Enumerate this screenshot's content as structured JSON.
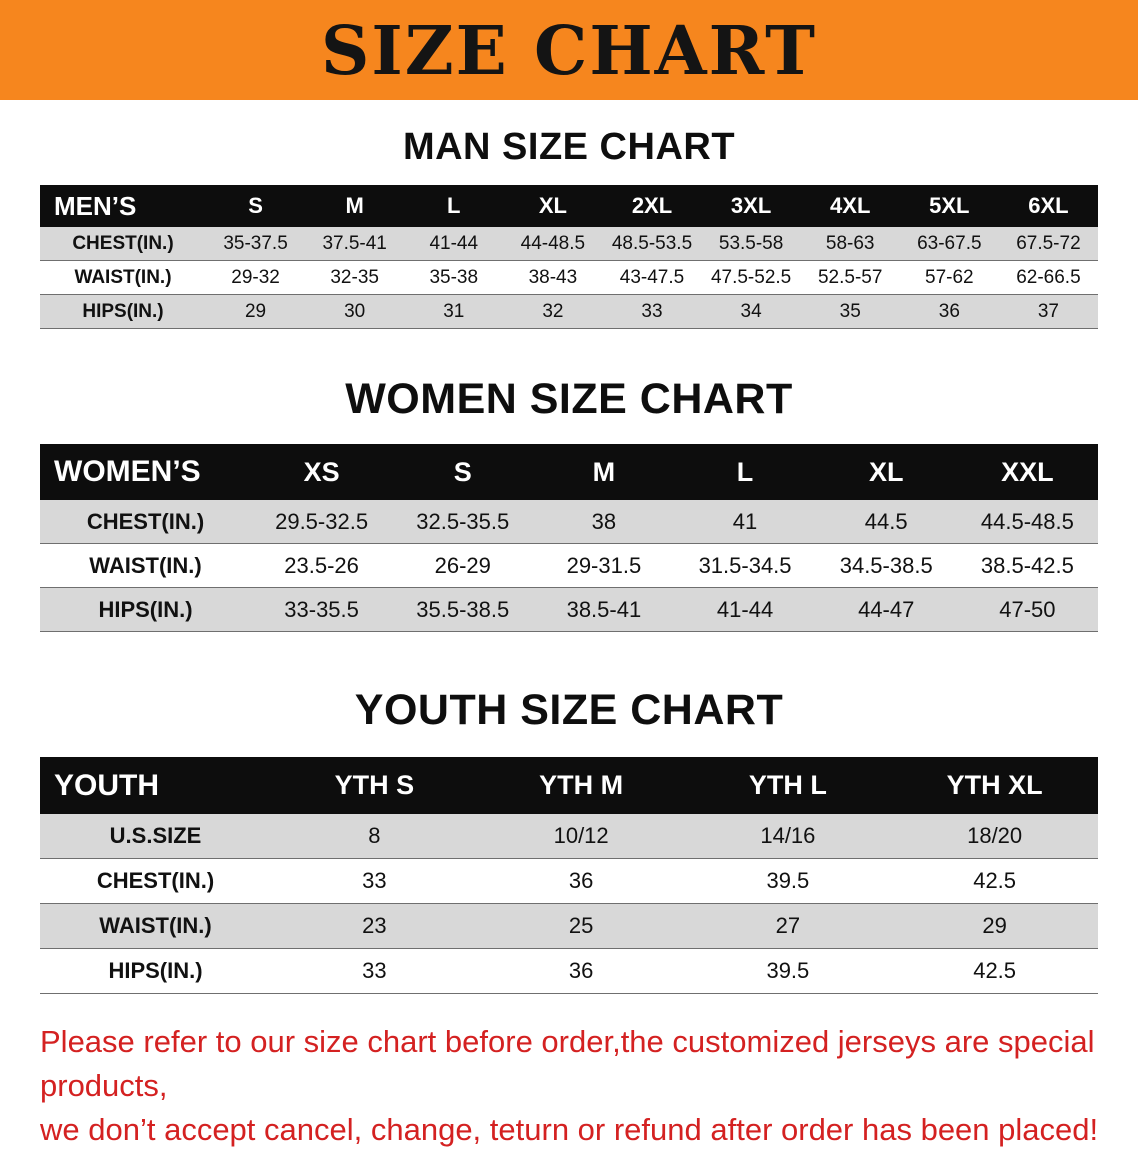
{
  "banner": {
    "title": "SIZE CHART",
    "bg_color": "#f6861e"
  },
  "colors": {
    "header_bar": "#0d0d0d",
    "row_gray": "#d8d8d8",
    "footer_red": "#d42121"
  },
  "sections": [
    {
      "heading": "MAN SIZE CHART"
    },
    {
      "heading": "WOMEN SIZE CHART"
    },
    {
      "heading": "YOUTH SIZE CHART"
    }
  ],
  "chart_data": [
    {
      "type": "table",
      "title": "MAN SIZE CHART",
      "first_column_header": "MEN’S",
      "columns": [
        "S",
        "M",
        "L",
        "XL",
        "2XL",
        "3XL",
        "4XL",
        "5XL",
        "6XL"
      ],
      "row_labels": [
        "CHEST(IN.)",
        "WAIST(IN.)",
        "HIPS(IN.)"
      ],
      "rows": [
        [
          "35-37.5",
          "37.5-41",
          "41-44",
          "44-48.5",
          "48.5-53.5",
          "53.5-58",
          "58-63",
          "63-67.5",
          "67.5-72"
        ],
        [
          "29-32",
          "32-35",
          "35-38",
          "38-43",
          "43-47.5",
          "47.5-52.5",
          "52.5-57",
          "57-62",
          "62-66.5"
        ],
        [
          "29",
          "30",
          "31",
          "32",
          "33",
          "34",
          "35",
          "36",
          "37"
        ]
      ]
    },
    {
      "type": "table",
      "title": "WOMEN SIZE CHART",
      "first_column_header": "WOMEN’S",
      "columns": [
        "XS",
        "S",
        "M",
        "L",
        "XL",
        "XXL"
      ],
      "row_labels": [
        "CHEST(IN.)",
        "WAIST(IN.)",
        "HIPS(IN.)"
      ],
      "rows": [
        [
          "29.5-32.5",
          "32.5-35.5",
          "38",
          "41",
          "44.5",
          "44.5-48.5"
        ],
        [
          "23.5-26",
          "26-29",
          "29-31.5",
          "31.5-34.5",
          "34.5-38.5",
          "38.5-42.5"
        ],
        [
          "33-35.5",
          "35.5-38.5",
          "38.5-41",
          "41-44",
          "44-47",
          "47-50"
        ]
      ]
    },
    {
      "type": "table",
      "title": "YOUTH SIZE CHART",
      "first_column_header": "YOUTH",
      "columns": [
        "YTH S",
        "YTH M",
        "YTH L",
        "YTH XL"
      ],
      "row_labels": [
        "U.S.SIZE",
        "CHEST(IN.)",
        "WAIST(IN.)",
        "HIPS(IN.)"
      ],
      "rows": [
        [
          "8",
          "10/12",
          "14/16",
          "18/20"
        ],
        [
          "33",
          "36",
          "39.5",
          "42.5"
        ],
        [
          "23",
          "25",
          "27",
          "29"
        ],
        [
          "33",
          "36",
          "39.5",
          "42.5"
        ]
      ]
    }
  ],
  "footer": {
    "line1": "Please refer to our size chart before order,the customized jerseys are special products,",
    "line2": "we don’t accept cancel, change, teturn or refund after order has been placed!"
  }
}
